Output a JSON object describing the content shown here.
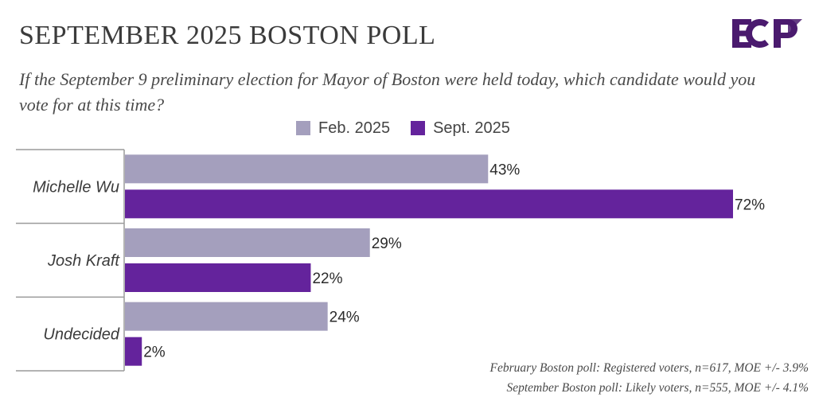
{
  "header": {
    "title": "SEPTEMBER 2025 BOSTON POLL",
    "subtitle": "If the September 9 preliminary election for Mayor of Boston were held today, which candidate would you vote for at this time?",
    "logo_text": "ECP"
  },
  "colors": {
    "feb": "#a49fbd",
    "sept": "#64239c",
    "logo": "#4a1a6e",
    "axis": "#9a9a9a"
  },
  "chart_data": {
    "type": "bar",
    "orientation": "horizontal",
    "categories": [
      "Michelle Wu",
      "Josh Kraft",
      "Undecided"
    ],
    "series": [
      {
        "name": "Feb. 2025",
        "values": [
          43,
          29,
          24
        ],
        "labels": [
          "43%",
          "29%",
          "24%"
        ]
      },
      {
        "name": "Sept. 2025",
        "values": [
          72,
          22,
          2
        ],
        "labels": [
          "72%",
          "22%",
          "2%"
        ]
      }
    ],
    "xlim": [
      0,
      100
    ],
    "unit": "%",
    "legend_position": "top",
    "grid": false
  },
  "footnotes": [
    "February Boston poll: Registered voters, n=617, MOE +/- 3.9%",
    "September Boston poll: Likely voters, n=555, MOE +/- 4.1%"
  ]
}
